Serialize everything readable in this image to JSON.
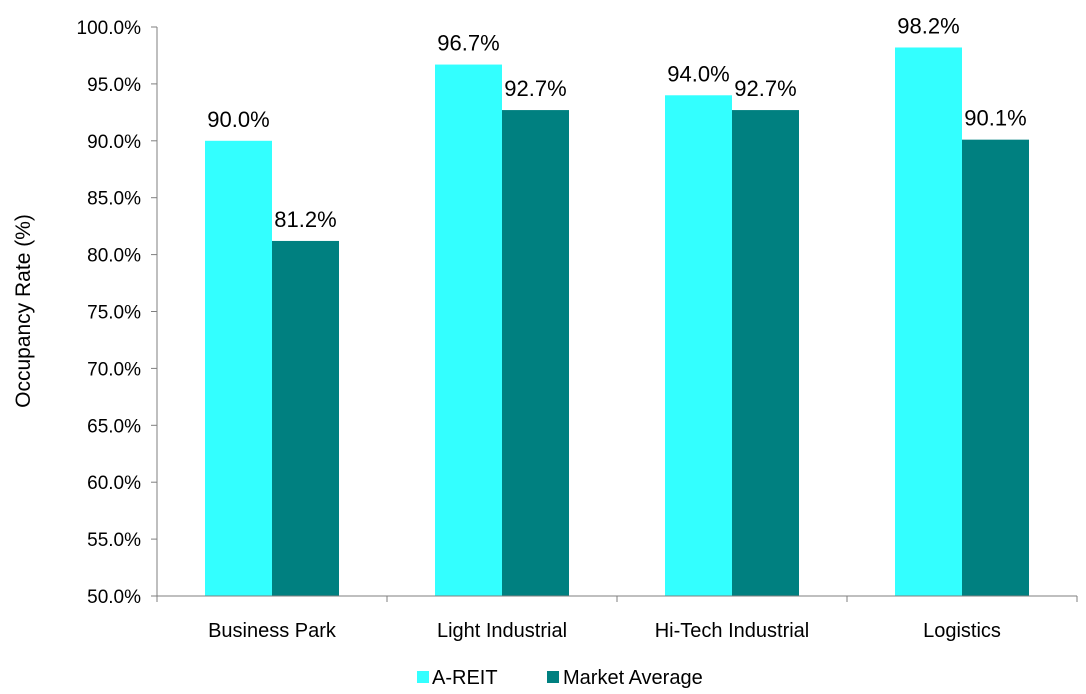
{
  "chart_data": {
    "type": "bar",
    "categories": [
      "Business Park",
      "Light Industrial",
      "Hi-Tech Industrial",
      "Logistics"
    ],
    "series": [
      {
        "name": "A-REIT",
        "values": [
          90.0,
          96.7,
          94.0,
          98.2
        ],
        "labels": [
          "90.0%",
          "96.7%",
          "94.0%",
          "98.2%"
        ],
        "color": "#33FFFF"
      },
      {
        "name": "Market Average",
        "values": [
          81.2,
          92.7,
          92.7,
          90.1
        ],
        "labels": [
          "81.2%",
          "92.7%",
          "92.7%",
          "90.1%"
        ],
        "color": "#008080"
      }
    ],
    "ylabel": "Occupancy Rate (%)",
    "ylim": [
      50,
      100
    ],
    "yticks": [
      50,
      55,
      60,
      65,
      70,
      75,
      80,
      85,
      90,
      95,
      100
    ],
    "ytick_labels": [
      "50.0%",
      "55.0%",
      "60.0%",
      "65.0%",
      "70.0%",
      "75.0%",
      "80.0%",
      "85.0%",
      "90.0%",
      "95.0%",
      "100.0%"
    ],
    "grid": false,
    "legend_position": "bottom-center"
  }
}
